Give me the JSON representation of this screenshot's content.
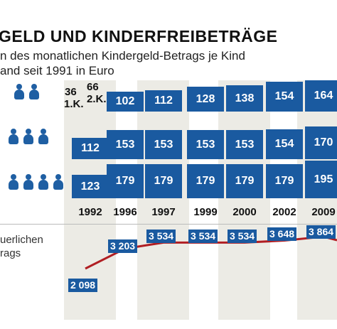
{
  "title": "GELD UND KINDERFREIBETRÄGE",
  "subtitle_line1": "n des monatlichen Kindergeld-Betrags je Kind",
  "subtitle_line2": "and seit 1991 in Euro",
  "left_label_line1": "uerlichen",
  "left_label_line2": "rags",
  "footer": "",
  "colors": {
    "bar": "#1a5aa0",
    "line": "#b01e23",
    "stripe": "#ecebe5"
  },
  "chart_data": {
    "type": "bar",
    "categories": [
      "1992",
      "1996",
      "1997",
      "1999",
      "2000",
      "2002",
      "2009"
    ],
    "first_label": {
      "line1_a": "36",
      "line1_b": "66",
      "line2_a": "1.K.",
      "line2_b": "2.K."
    },
    "series": [
      {
        "name": "",
        "icons": 2,
        "values": [
          null,
          102,
          112,
          128,
          138,
          154,
          164
        ]
      },
      {
        "name": "",
        "icons": 3,
        "values": [
          112,
          153,
          153,
          153,
          153,
          154,
          170
        ]
      },
      {
        "name": "",
        "icons": 4,
        "values": [
          123,
          179,
          179,
          179,
          179,
          179,
          195
        ]
      }
    ],
    "line": {
      "values": [
        2098,
        3203,
        3534,
        3534,
        3534,
        3648,
        3864
      ],
      "labels": [
        "2 098",
        "3 203",
        "3 534",
        "3 534",
        "3 534",
        "3 648",
        "3 864"
      ]
    }
  }
}
